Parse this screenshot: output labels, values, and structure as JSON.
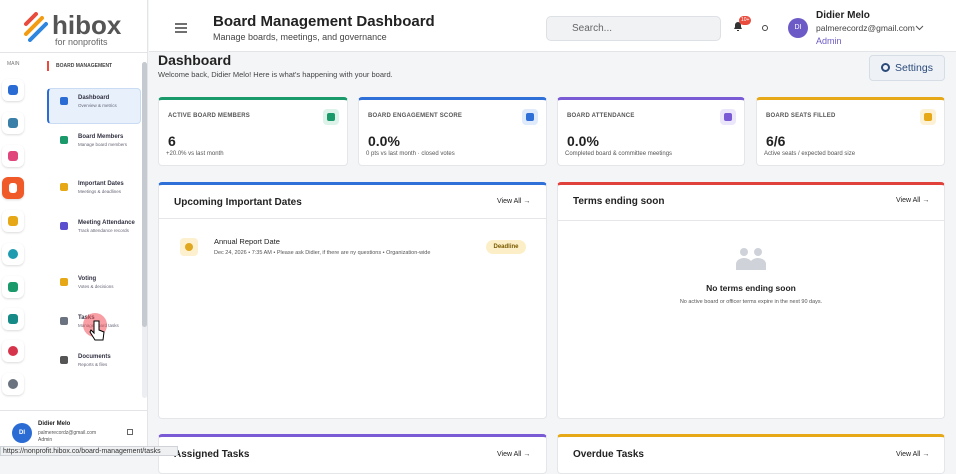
{
  "logo": {
    "name": "hibox",
    "tagline": "for nonprofits"
  },
  "sidebar": {
    "section": "MAIN",
    "group": "BOARD MANAGEMENT",
    "items": [
      {
        "label": "Dashboard",
        "sub": "Overview & metrics"
      },
      {
        "label": "Board Members",
        "sub": "Manage board members"
      },
      {
        "label": "Important Dates",
        "sub": "Meetings & deadlines"
      },
      {
        "label": "Meeting Attendance",
        "sub": "Track attendance records"
      },
      {
        "label": "Voting",
        "sub": "Votes & decisions"
      },
      {
        "label": "Tasks",
        "sub": "Manage board tasks"
      },
      {
        "label": "Documents",
        "sub": "Reports & files"
      }
    ],
    "user": {
      "initials": "DI",
      "name": "Didier Melo",
      "email": "palmerecordz@gmail.com",
      "role": "Admin"
    }
  },
  "header": {
    "title": "Board Management Dashboard",
    "subtitle": "Manage boards, meetings, and governance",
    "search_placeholder": "Search...",
    "notification_badge": "10+",
    "user": {
      "initials": "DI",
      "name": "Didier Melo",
      "email": "palmerecordz@gmail.com",
      "role": "Admin"
    }
  },
  "page": {
    "title": "Dashboard",
    "welcome": "Welcome back, Didier Melo! Here is what's happening with your board.",
    "settings": "Settings"
  },
  "stats": [
    {
      "label": "ACTIVE BOARD MEMBERS",
      "value": "6",
      "note": "+20.0% vs last month"
    },
    {
      "label": "BOARD ENGAGEMENT SCORE",
      "value": "0.0%",
      "note": "0 pts vs last month · closed votes"
    },
    {
      "label": "BOARD ATTENDANCE",
      "value": "0.0%",
      "note": "Completed board & committee meetings"
    },
    {
      "label": "BOARD SEATS FILLED",
      "value": "6/6",
      "note": "Active seats / expected board size"
    }
  ],
  "panels": {
    "upcoming": {
      "title": "Upcoming Important Dates",
      "view_all": "View All →",
      "items": [
        {
          "title": "Annual Report Date",
          "meta": "Dec 24, 2026 • 7:35 AM • Please ask Didier, if there are ny questions • Organization-wide",
          "tag": "Deadline"
        }
      ]
    },
    "terms": {
      "title": "Terms ending soon",
      "view_all": "View All →",
      "empty_title": "No terms ending soon",
      "empty_text": "No active board or officer terms expire in the next 90 days."
    },
    "assigned": {
      "title": "Assigned Tasks",
      "view_all": "View All →"
    },
    "overdue": {
      "title": "Overdue Tasks",
      "view_all": "View All →"
    }
  },
  "status_bar": "https://nonprofit.hibox.co/board-management/tasks"
}
